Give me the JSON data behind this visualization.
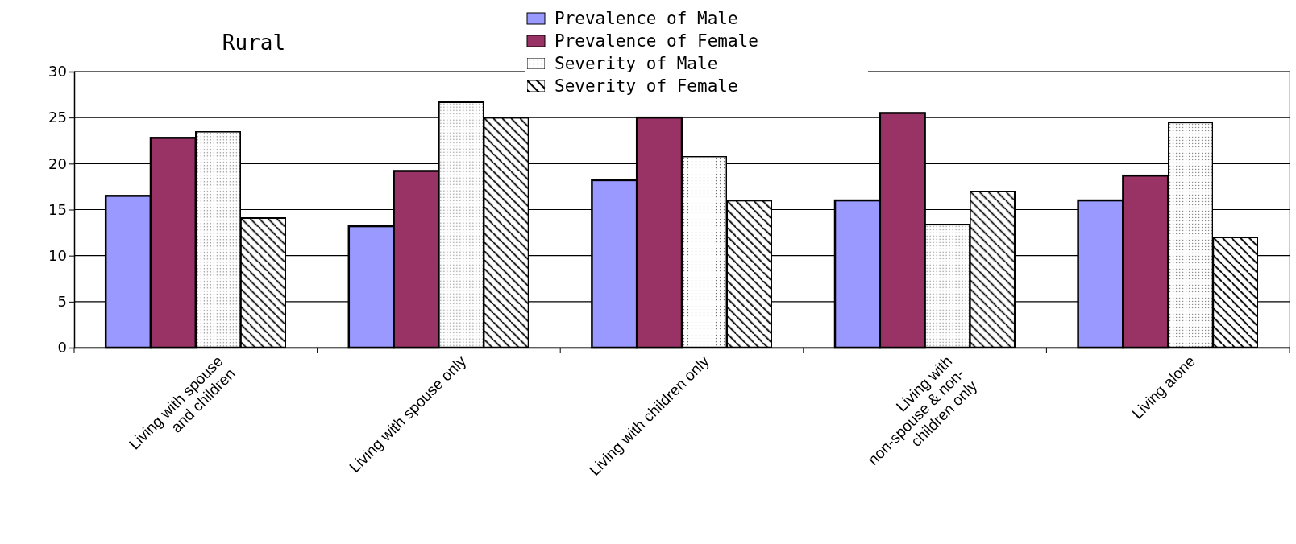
{
  "chart_data": {
    "type": "bar",
    "title": "Rural",
    "categories": [
      "Living with spouse\nand children",
      "Living with spouse only",
      "Living with children only",
      "Living with\nnon-spouse & non-\nchildren  only",
      "Living alone"
    ],
    "series": [
      {
        "name": "Prevalence of Male",
        "color": "#9999ff",
        "values": [
          16.5,
          13.2,
          18.2,
          16,
          16
        ]
      },
      {
        "name": "Prevalence of Female",
        "color": "#993366",
        "values": [
          22.8,
          19.2,
          25,
          25.5,
          18.7
        ]
      },
      {
        "name": "Severity of Male",
        "color": "#ffffff",
        "values": [
          23.5,
          26.7,
          20.8,
          13.4,
          24.5
        ]
      },
      {
        "name": "Severity of Female",
        "color": "#ffffff",
        "values": [
          14.1,
          25,
          16,
          17,
          12
        ]
      }
    ],
    "ylim": [
      0,
      30
    ],
    "yticks": [
      0,
      5,
      10,
      15,
      20,
      25,
      30
    ],
    "grid": "y",
    "legend": "top"
  }
}
